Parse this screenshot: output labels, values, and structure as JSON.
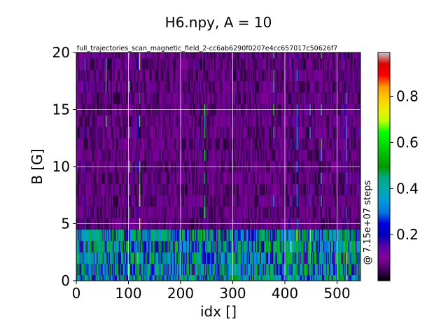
{
  "chart_data": {
    "type": "heatmap",
    "title": "H6.npy, A = 10",
    "subtitle": "full_trajectories_scan_magnetic_field_2-cc6ab6290f0207e4cc657017c50626f7",
    "xlabel": "idx []",
    "ylabel": "B [G]",
    "xlim": [
      0,
      545
    ],
    "ylim": [
      0,
      20
    ],
    "x_ticks": [
      "0",
      "100",
      "200",
      "300",
      "400",
      "500"
    ],
    "x_tick_values": [
      0,
      100,
      200,
      300,
      400,
      500
    ],
    "y_ticks": [
      "0",
      "5",
      "10",
      "15",
      "20"
    ],
    "y_tick_values": [
      0,
      5,
      10,
      15,
      20
    ],
    "grid": true,
    "colormap": "nipy_spectral",
    "colorbar": {
      "label": "@ 7.15e+07 steps",
      "ticks": [
        "0.2",
        "0.4",
        "0.6",
        "0.8"
      ],
      "tick_values": [
        0.2,
        0.4,
        0.6,
        0.8
      ],
      "range": [
        0,
        0.99
      ]
    },
    "b_rows": [
      0,
      1,
      2,
      3,
      4,
      5,
      6,
      7,
      8,
      9,
      10,
      11,
      12,
      13,
      14,
      15,
      16,
      17,
      18,
      19,
      20
    ],
    "row_value_profile": [
      {
        "b_range": [
          0,
          5
        ],
        "typical": 0.35,
        "spread": 0.45
      },
      {
        "b_range": [
          5,
          20
        ],
        "typical": 0.06,
        "spread": 0.12
      }
    ],
    "notable_columns": [
      {
        "idx": 57,
        "peak": 0.65
      },
      {
        "idx": 102,
        "peak": 0.7
      },
      {
        "idx": 120,
        "peak": 0.75
      },
      {
        "idx": 246,
        "peak": 0.65
      },
      {
        "idx": 378,
        "peak": 0.6
      },
      {
        "idx": 470,
        "peak": 0.6
      }
    ]
  }
}
